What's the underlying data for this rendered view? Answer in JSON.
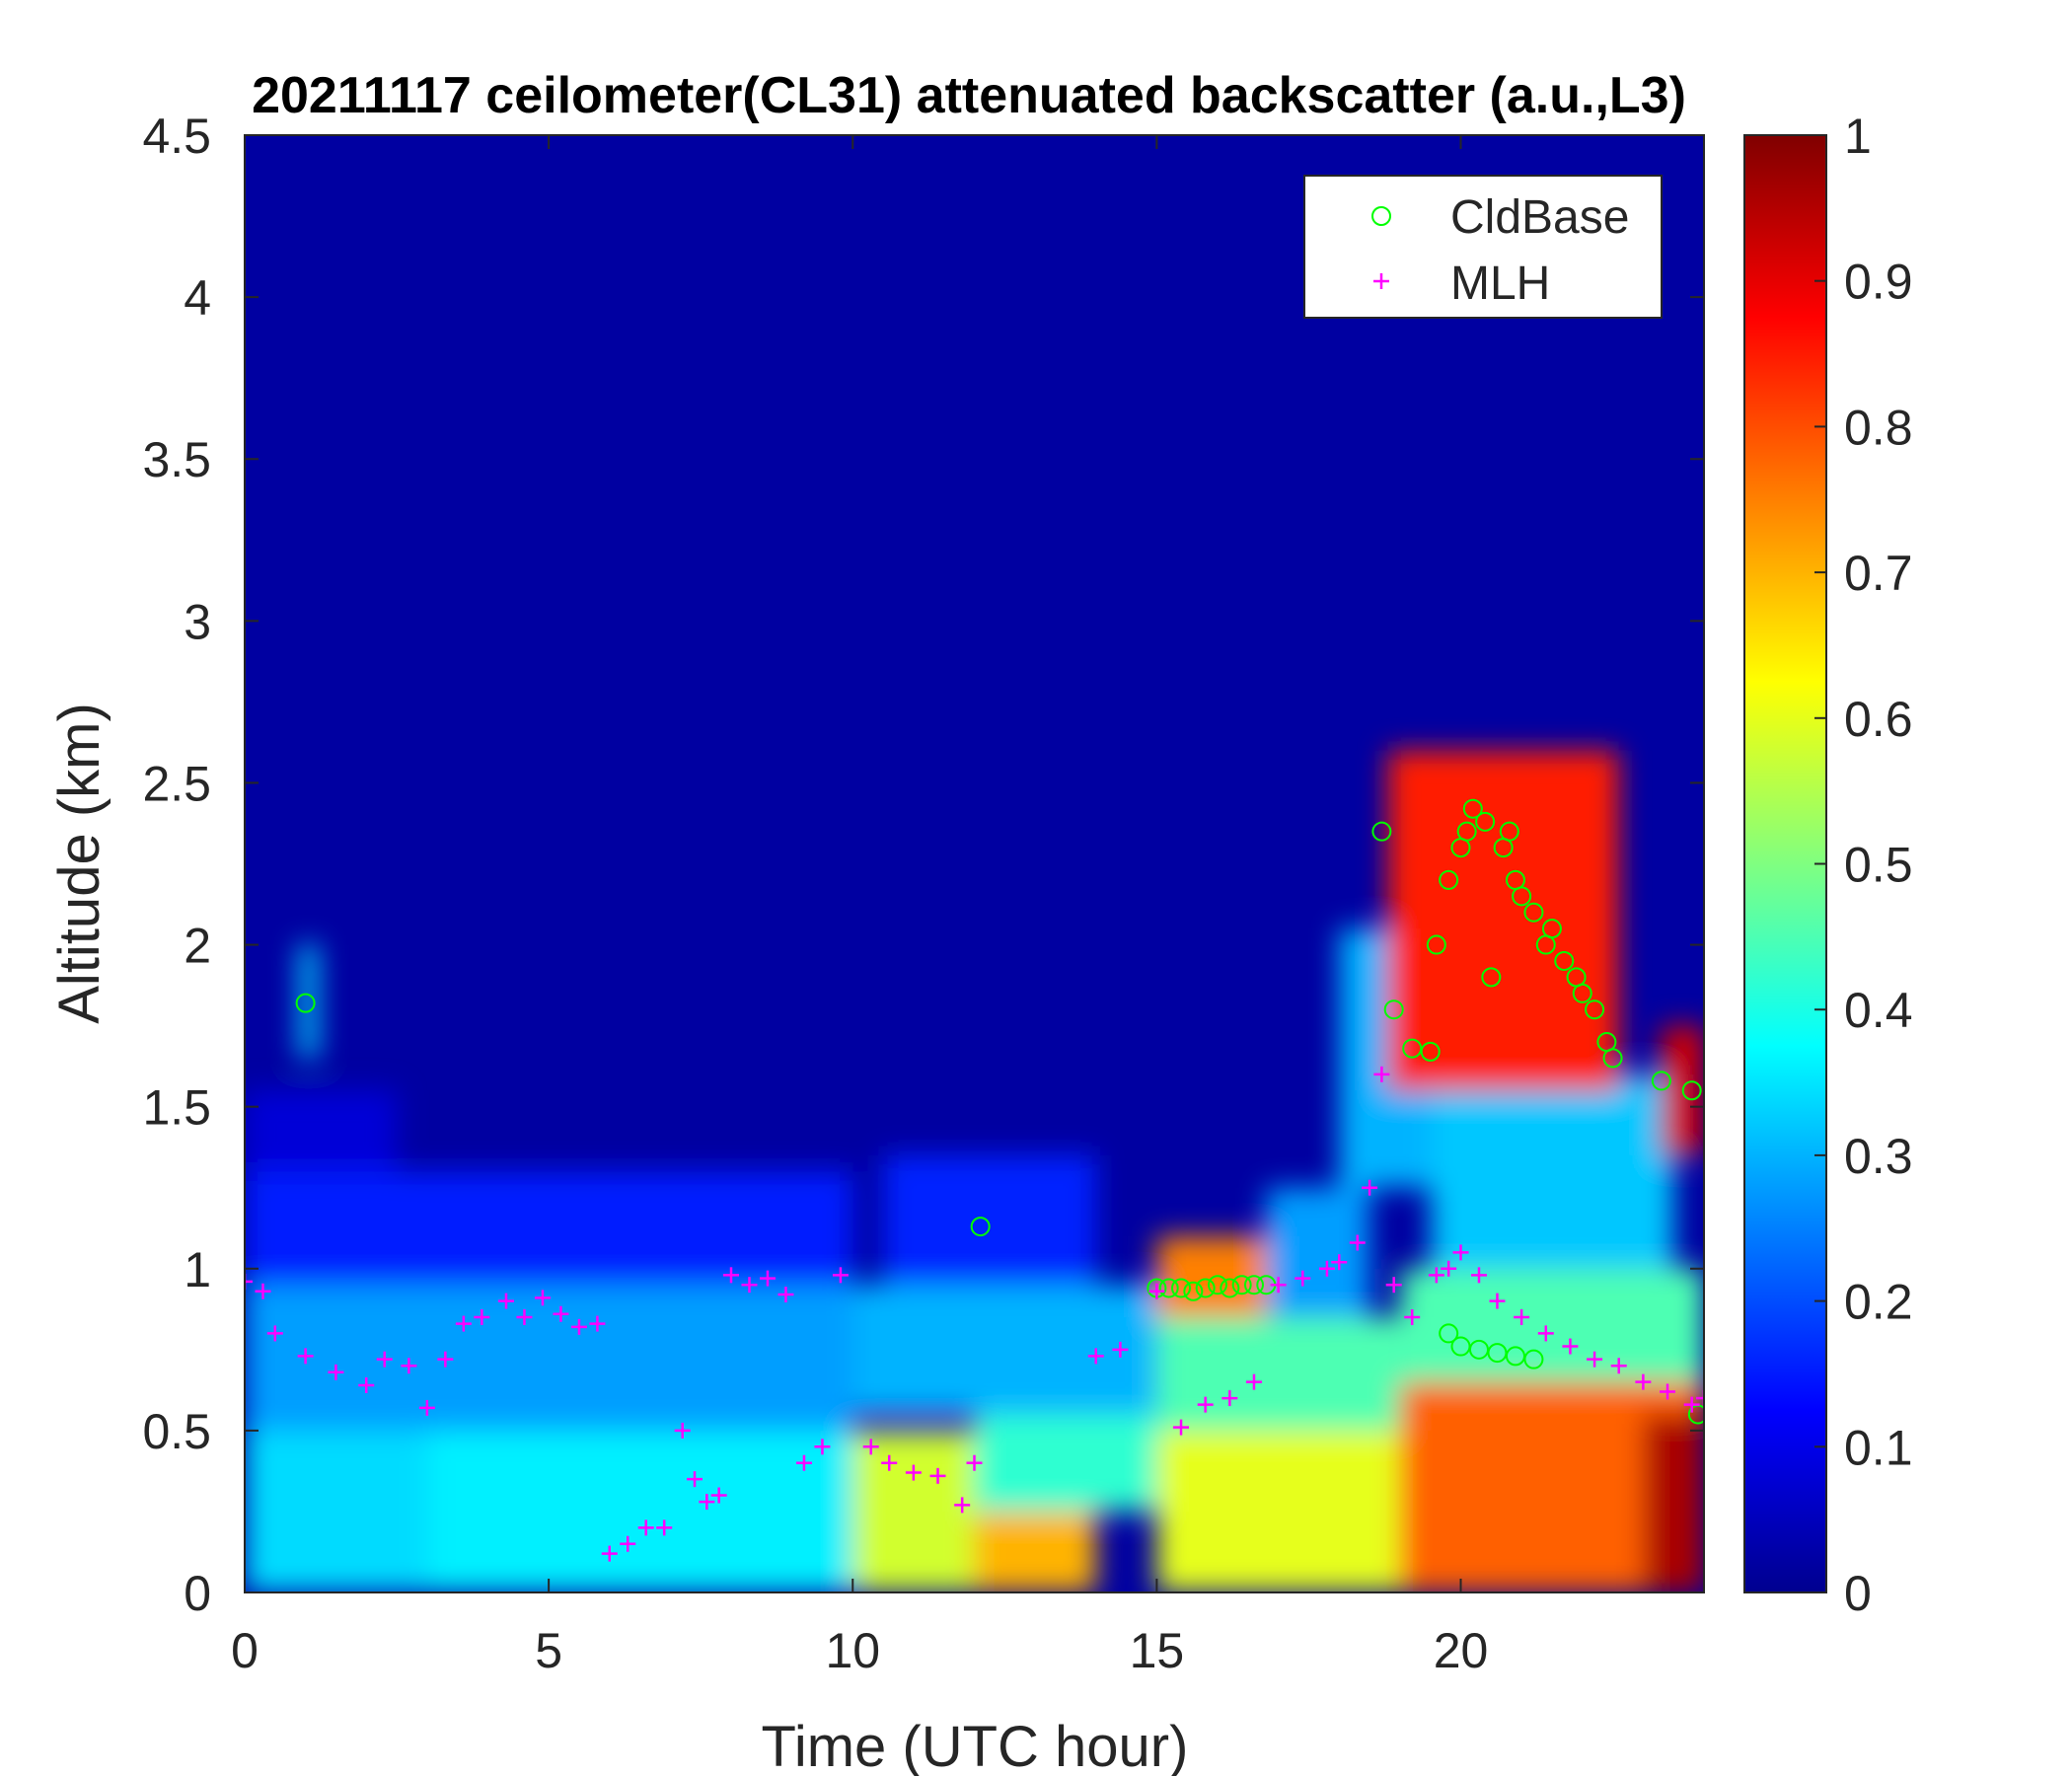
{
  "chart_data": {
    "type": "heatmap",
    "title": "20211117 ceilometer(CL31) attenuated backscatter (a.u.,L3)",
    "xlabel": "Time (UTC hour)",
    "ylabel": "Altitude (km)",
    "xlim": [
      0,
      24
    ],
    "ylim": [
      0,
      4.5
    ],
    "xticks": [
      0,
      5,
      10,
      15,
      20
    ],
    "xtick_labels": [
      "0",
      "5",
      "10",
      "15",
      "20"
    ],
    "yticks": [
      0,
      0.5,
      1,
      1.5,
      2,
      2.5,
      3,
      3.5,
      4,
      4.5
    ],
    "ytick_labels": [
      "0",
      "0.5",
      "1",
      "1.5",
      "2",
      "2.5",
      "3",
      "3.5",
      "4",
      "4.5"
    ],
    "colorbar": {
      "min": 0,
      "max": 1,
      "ticks": [
        0,
        0.1,
        0.2,
        0.3,
        0.4,
        0.5,
        0.6,
        0.7,
        0.8,
        0.9,
        1
      ],
      "tick_labels": [
        "0",
        "0.1",
        "0.2",
        "0.3",
        "0.4",
        "0.5",
        "0.6",
        "0.7",
        "0.8",
        "0.9",
        "1"
      ],
      "colormap": "jet",
      "colors": [
        "#00008F",
        "#0000FF",
        "#0080FF",
        "#00FFFF",
        "#80FF80",
        "#FFFF00",
        "#FF8000",
        "#FF0000",
        "#800000"
      ]
    },
    "legend": {
      "placement": "top-right",
      "entries": [
        {
          "label": "CldBase",
          "marker": "circle",
          "color": "#00FF00"
        },
        {
          "label": "MLH",
          "marker": "plus",
          "color": "#FF00FF"
        }
      ]
    },
    "background_value": 0.02,
    "field_regions": [
      {
        "t0": 0.0,
        "t1": 3.0,
        "z0": 0.0,
        "z1": 0.5,
        "value": 0.34
      },
      {
        "t0": 3.0,
        "t1": 10.0,
        "z0": 0.0,
        "z1": 0.5,
        "value": 0.36
      },
      {
        "t0": 0.0,
        "t1": 10.0,
        "z0": 0.5,
        "z1": 0.95,
        "value": 0.28
      },
      {
        "t0": 0.0,
        "t1": 10.0,
        "z0": 0.95,
        "z1": 1.3,
        "value": 0.15
      },
      {
        "t0": 0.0,
        "t1": 2.5,
        "z0": 1.3,
        "z1": 1.55,
        "value": 0.08
      },
      {
        "t0": 10.0,
        "t1": 12.0,
        "z0": 0.0,
        "z1": 0.5,
        "value": 0.58
      },
      {
        "t0": 12.0,
        "t1": 14.0,
        "z0": 0.0,
        "z1": 0.25,
        "value": 0.7
      },
      {
        "t0": 12.0,
        "t1": 15.0,
        "z0": 0.25,
        "z1": 0.55,
        "value": 0.42
      },
      {
        "t0": 10.0,
        "t1": 15.0,
        "z0": 0.55,
        "z1": 0.95,
        "value": 0.3
      },
      {
        "t0": 10.5,
        "t1": 14.0,
        "z0": 0.95,
        "z1": 1.35,
        "value": 0.16
      },
      {
        "t0": 15.0,
        "t1": 19.0,
        "z0": 0.0,
        "z1": 0.5,
        "value": 0.6
      },
      {
        "t0": 15.0,
        "t1": 19.0,
        "z0": 0.5,
        "z1": 0.85,
        "value": 0.45
      },
      {
        "t0": 16.8,
        "t1": 18.5,
        "z0": 0.85,
        "z1": 1.25,
        "value": 0.28
      },
      {
        "t0": 18.0,
        "t1": 19.5,
        "z0": 1.25,
        "z1": 2.05,
        "value": 0.3
      },
      {
        "t0": 19.5,
        "t1": 23.5,
        "z0": 1.0,
        "z1": 1.6,
        "value": 0.32
      },
      {
        "t0": 19.0,
        "t1": 24.0,
        "z0": 0.65,
        "z1": 1.0,
        "value": 0.45
      },
      {
        "t0": 19.0,
        "t1": 24.0,
        "z0": 0.0,
        "z1": 0.65,
        "value": 0.78
      },
      {
        "t0": 23.0,
        "t1": 24.0,
        "z0": 0.0,
        "z1": 0.55,
        "value": 0.96
      },
      {
        "t0": 15.0,
        "t1": 16.8,
        "z0": 0.85,
        "z1": 1.1,
        "value": 0.75
      },
      {
        "t0": 18.8,
        "t1": 22.6,
        "z0": 1.55,
        "z1": 2.6,
        "value": 0.85
      },
      {
        "t0": 23.3,
        "t1": 24.0,
        "z0": 1.35,
        "z1": 1.75,
        "value": 0.92
      },
      {
        "t0": 0.9,
        "t1": 1.2,
        "z0": 1.65,
        "z1": 2.0,
        "value": 0.33
      }
    ],
    "series": [
      {
        "name": "CldBase",
        "marker": "circle",
        "x": [
          1.0,
          12.1,
          15.0,
          15.2,
          15.4,
          15.6,
          15.8,
          16.0,
          16.2,
          16.4,
          16.6,
          16.8,
          18.7,
          18.9,
          19.2,
          19.5,
          19.6,
          19.8,
          20.0,
          20.1,
          20.2,
          20.4,
          20.5,
          20.7,
          20.8,
          20.9,
          21.0,
          21.2,
          21.4,
          21.5,
          21.7,
          21.9,
          22.0,
          22.2,
          22.4,
          22.5,
          19.8,
          20.0,
          20.3,
          20.6,
          20.9,
          21.2,
          23.3,
          23.8,
          23.9
        ],
        "y": [
          1.82,
          1.13,
          0.94,
          0.94,
          0.94,
          0.93,
          0.94,
          0.95,
          0.94,
          0.95,
          0.95,
          0.95,
          2.35,
          1.8,
          1.68,
          1.67,
          2.0,
          2.2,
          2.3,
          2.35,
          2.42,
          2.38,
          1.9,
          2.3,
          2.35,
          2.2,
          2.15,
          2.1,
          2.0,
          2.05,
          1.95,
          1.9,
          1.85,
          1.8,
          1.7,
          1.65,
          0.8,
          0.76,
          0.75,
          0.74,
          0.73,
          0.72,
          1.58,
          1.55,
          0.55
        ]
      },
      {
        "name": "MLH",
        "marker": "plus",
        "x": [
          0.0,
          0.3,
          0.5,
          1.0,
          1.5,
          2.0,
          2.3,
          2.7,
          3.0,
          3.3,
          3.6,
          3.9,
          4.3,
          4.6,
          4.9,
          5.2,
          5.5,
          5.8,
          6.0,
          6.3,
          6.6,
          6.9,
          7.2,
          7.4,
          7.6,
          7.8,
          8.0,
          8.3,
          8.6,
          8.9,
          9.2,
          9.5,
          9.8,
          10.3,
          10.6,
          11.0,
          11.4,
          11.8,
          12.0,
          14.0,
          14.4,
          15.0,
          15.4,
          15.8,
          16.2,
          16.6,
          17.0,
          17.4,
          17.8,
          18.0,
          18.3,
          18.5,
          18.7,
          18.9,
          19.2,
          19.6,
          19.8,
          20.0,
          20.3,
          20.6,
          21.0,
          21.4,
          21.8,
          22.2,
          22.6,
          23.0,
          23.4,
          23.8,
          24.0
        ],
        "y": [
          0.96,
          0.93,
          0.8,
          0.73,
          0.68,
          0.64,
          0.72,
          0.7,
          0.57,
          0.72,
          0.83,
          0.85,
          0.9,
          0.85,
          0.91,
          0.86,
          0.82,
          0.83,
          0.12,
          0.15,
          0.2,
          0.2,
          0.5,
          0.35,
          0.28,
          0.3,
          0.98,
          0.95,
          0.97,
          0.92,
          0.4,
          0.45,
          0.98,
          0.45,
          0.4,
          0.37,
          0.36,
          0.27,
          0.4,
          0.73,
          0.75,
          0.93,
          0.51,
          0.58,
          0.6,
          0.65,
          0.95,
          0.97,
          1.0,
          1.02,
          1.08,
          1.25,
          1.6,
          0.95,
          0.85,
          0.98,
          1.0,
          1.05,
          0.98,
          0.9,
          0.85,
          0.8,
          0.76,
          0.72,
          0.7,
          0.65,
          0.62,
          0.58,
          0.6
        ]
      }
    ]
  }
}
